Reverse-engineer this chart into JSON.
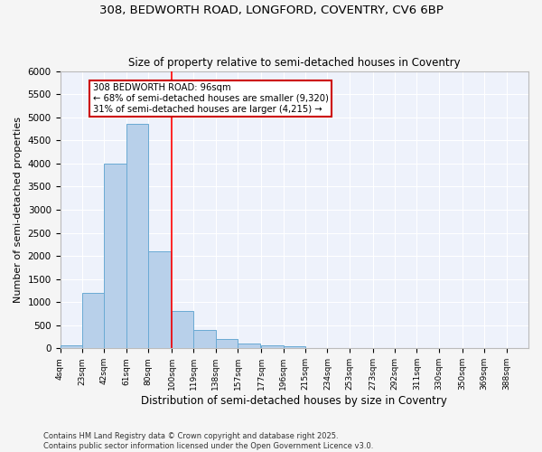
{
  "title1": "308, BEDWORTH ROAD, LONGFORD, COVENTRY, CV6 6BP",
  "title2": "Size of property relative to semi-detached houses in Coventry",
  "xlabel": "Distribution of semi-detached houses by size in Coventry",
  "ylabel": "Number of semi-detached properties",
  "bar_left_edges": [
    4,
    23,
    42,
    61,
    80,
    100,
    119,
    138,
    157,
    177,
    196,
    215,
    234,
    253,
    273,
    292,
    311,
    330,
    350,
    369
  ],
  "bar_heights": [
    70,
    1200,
    4000,
    4850,
    2100,
    800,
    390,
    200,
    100,
    60,
    50,
    0,
    0,
    0,
    0,
    0,
    0,
    0,
    0,
    0
  ],
  "bin_width": 19,
  "bar_color": "#b8d0ea",
  "bar_edge_color": "#6aaad4",
  "tick_labels": [
    "4sqm",
    "23sqm",
    "42sqm",
    "61sqm",
    "80sqm",
    "100sqm",
    "119sqm",
    "138sqm",
    "157sqm",
    "177sqm",
    "196sqm",
    "215sqm",
    "234sqm",
    "253sqm",
    "273sqm",
    "292sqm",
    "311sqm",
    "330sqm",
    "350sqm",
    "369sqm",
    "388sqm"
  ],
  "red_line_x": 100,
  "annotation_title": "308 BEDWORTH ROAD: 96sqm",
  "annotation_line1": "← 68% of semi-detached houses are smaller (9,320)",
  "annotation_line2": "31% of semi-detached houses are larger (4,215) →",
  "annotation_box_facecolor": "#ffffff",
  "annotation_box_edgecolor": "#cc0000",
  "ylim": [
    0,
    6000
  ],
  "yticks": [
    0,
    500,
    1000,
    1500,
    2000,
    2500,
    3000,
    3500,
    4000,
    4500,
    5000,
    5500,
    6000
  ],
  "background_color": "#eef2fb",
  "fig_facecolor": "#f5f5f5",
  "grid_color": "#ffffff",
  "footnote1": "Contains HM Land Registry data © Crown copyright and database right 2025.",
  "footnote2": "Contains public sector information licensed under the Open Government Licence v3.0."
}
